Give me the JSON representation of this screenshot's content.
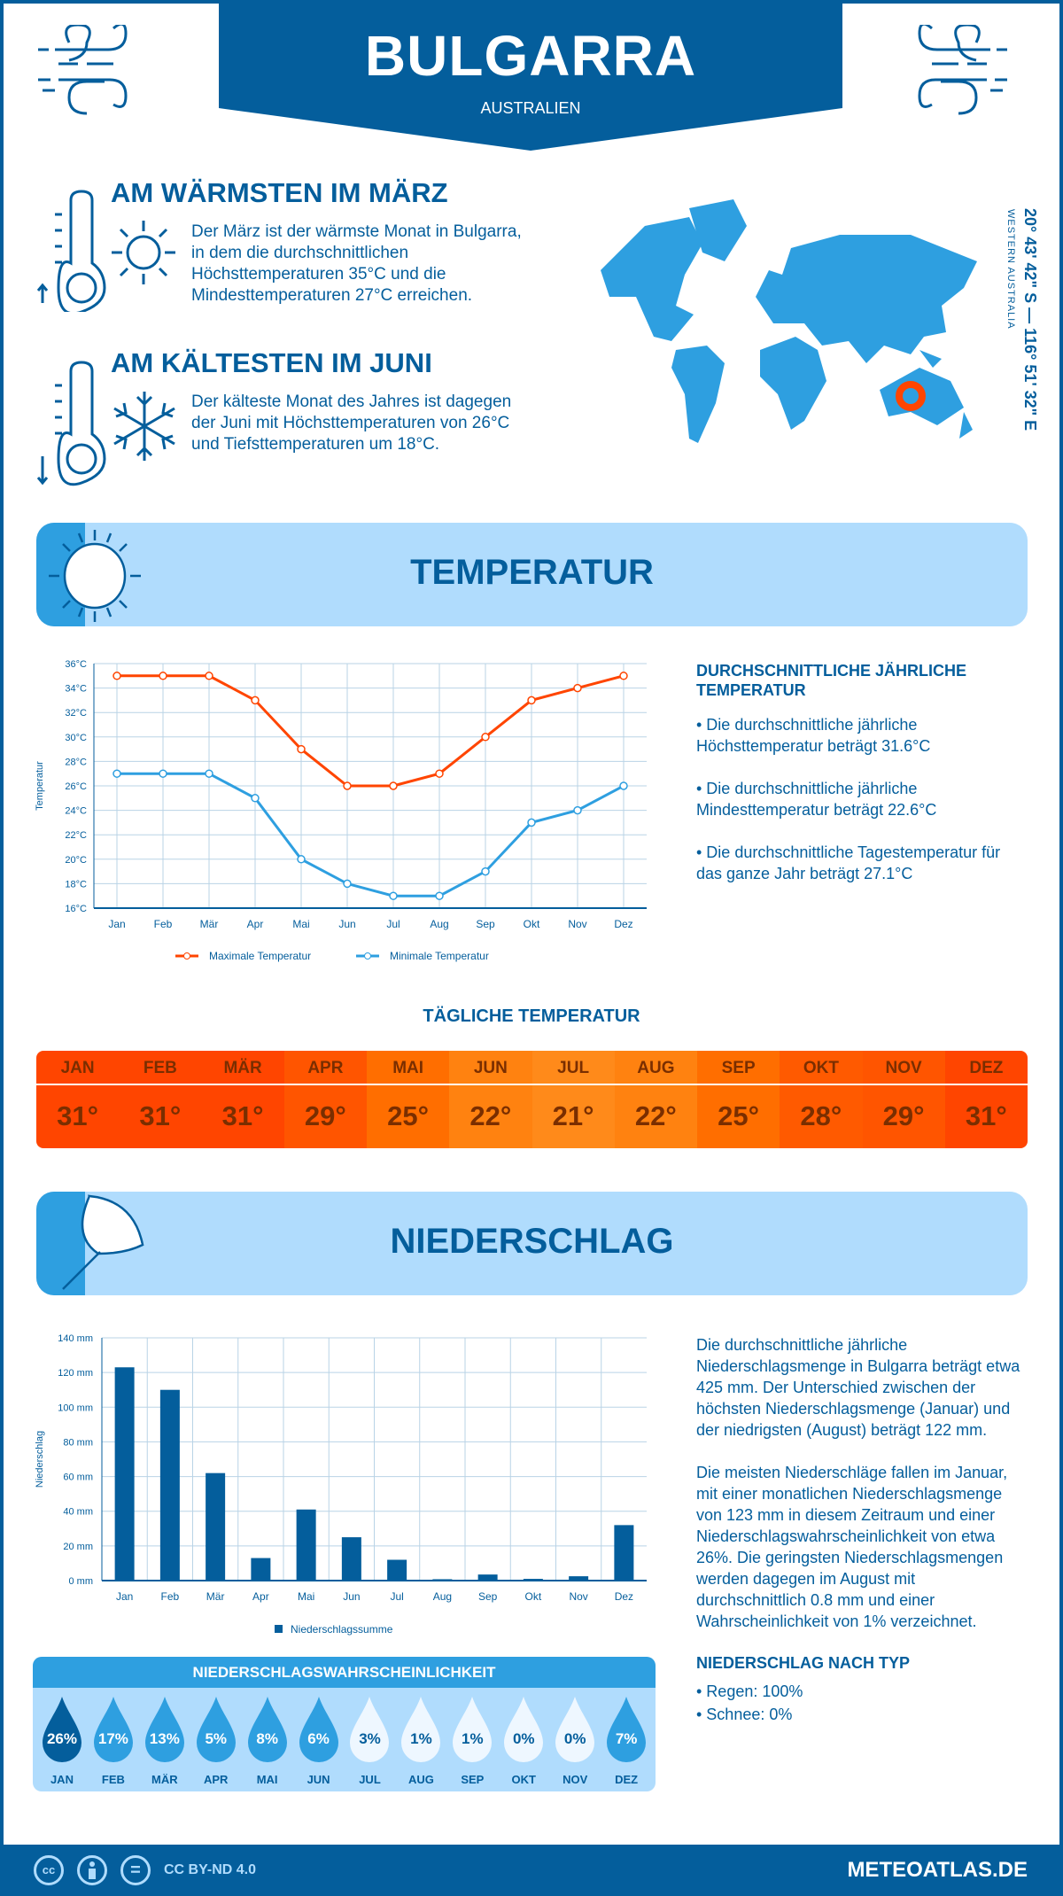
{
  "header": {
    "title": "BULGARRA",
    "country": "AUSTRALIEN"
  },
  "warm": {
    "title": "AM WÄRMSTEN IM MÄRZ",
    "lines": [
      "Der März ist der wärmste Monat in Bulgarra,",
      "in dem die durchschnittlichen",
      "Höchsttemperaturen 35°C und die",
      "Mindesttemperaturen 27°C erreichen."
    ]
  },
  "cold": {
    "title": "AM KÄLTESTEN IM JUNI",
    "lines": [
      "Der kälteste Monat des Jahres ist dagegen",
      "der Juni mit Höchsttemperaturen von 26°C",
      "und Tiefsttemperaturen um 18°C."
    ]
  },
  "map": {
    "coords": "20° 43' 42\" S — 116° 51' 32\" E",
    "region": "WESTERN AUSTRALIA"
  },
  "temperature": {
    "banner": "TEMPERATUR",
    "annual_title": "DURCHSCHNITTLICHE JÄHRLICHE TEMPERATUR",
    "annual": [
      "• Die durchschnittliche jährliche Höchsttemperatur beträgt 31.6°C",
      "• Die durchschnittliche jährliche Mindesttemperatur beträgt 22.6°C",
      "• Die durchschnittliche Tagestemperatur für das ganze Jahr beträgt 27.1°C"
    ],
    "daily_title": "TÄGLICHE TEMPERATUR",
    "daily": [
      {
        "m": "JAN",
        "v": "31°",
        "c": "#ff4500"
      },
      {
        "m": "FEB",
        "v": "31°",
        "c": "#ff4500"
      },
      {
        "m": "MÄR",
        "v": "31°",
        "c": "#ff4500"
      },
      {
        "m": "APR",
        "v": "29°",
        "c": "#ff5500"
      },
      {
        "m": "MAI",
        "v": "25°",
        "c": "#ff6e00"
      },
      {
        "m": "JUN",
        "v": "22°",
        "c": "#ff8210"
      },
      {
        "m": "JUL",
        "v": "21°",
        "c": "#ff8a1a"
      },
      {
        "m": "AUG",
        "v": "22°",
        "c": "#ff8210"
      },
      {
        "m": "SEP",
        "v": "25°",
        "c": "#ff6e00"
      },
      {
        "m": "OKT",
        "v": "28°",
        "c": "#ff5a00"
      },
      {
        "m": "NOV",
        "v": "29°",
        "c": "#ff5500"
      },
      {
        "m": "DEZ",
        "v": "31°",
        "c": "#ff4500"
      }
    ]
  },
  "precipitation": {
    "banner": "NIEDERSCHLAG",
    "text1": "Die durchschnittliche jährliche Niederschlagsmenge in Bulgarra beträgt etwa 425 mm. Der Unterschied zwischen der höchsten Niederschlagsmenge (Januar) und der niedrigsten (August) beträgt 122 mm.",
    "text2": "Die meisten Niederschläge fallen im Januar, mit einer monatlichen Niederschlagsmenge von 123 mm in diesem Zeitraum und einer Niederschlagswahrscheinlichkeit von etwa 26%. Die geringsten Niederschlagsmengen werden dagegen im August mit durchschnittlich 0.8 mm und einer Wahrscheinlichkeit von 1% verzeichnet.",
    "type_title": "NIEDERSCHLAG NACH TYP",
    "types": [
      "• Regen: 100%",
      "• Schnee: 0%"
    ],
    "prob_title": "NIEDERSCHLAGSWAHRSCHEINLICHKEIT",
    "prob": [
      {
        "m": "JAN",
        "v": "26%",
        "c": "#045e9c",
        "t": "#fff"
      },
      {
        "m": "FEB",
        "v": "17%",
        "c": "#2e9fe0",
        "t": "#fff"
      },
      {
        "m": "MÄR",
        "v": "13%",
        "c": "#2e9fe0",
        "t": "#fff"
      },
      {
        "m": "APR",
        "v": "5%",
        "c": "#2e9fe0",
        "t": "#fff"
      },
      {
        "m": "MAI",
        "v": "8%",
        "c": "#2e9fe0",
        "t": "#fff"
      },
      {
        "m": "JUN",
        "v": "6%",
        "c": "#2e9fe0",
        "t": "#fff"
      },
      {
        "m": "JUL",
        "v": "3%",
        "c": "#eef7ff",
        "t": "#045e9c"
      },
      {
        "m": "AUG",
        "v": "1%",
        "c": "#eef7ff",
        "t": "#045e9c"
      },
      {
        "m": "SEP",
        "v": "1%",
        "c": "#eef7ff",
        "t": "#045e9c"
      },
      {
        "m": "OKT",
        "v": "0%",
        "c": "#eef7ff",
        "t": "#045e9c"
      },
      {
        "m": "NOV",
        "v": "0%",
        "c": "#eef7ff",
        "t": "#045e9c"
      },
      {
        "m": "DEZ",
        "v": "7%",
        "c": "#2e9fe0",
        "t": "#fff"
      }
    ]
  },
  "footer": {
    "license": "CC BY-ND 4.0",
    "site": "METEOATLAS.DE",
    "cc": "cc",
    "eq": "="
  },
  "chart_data": [
    {
      "type": "line",
      "ylabel": "Temperatur",
      "ylim": [
        16,
        36
      ],
      "yticks": [
        "16°C",
        "18°C",
        "20°C",
        "22°C",
        "24°C",
        "26°C",
        "28°C",
        "30°C",
        "32°C",
        "34°C",
        "36°C"
      ],
      "categories": [
        "Jan",
        "Feb",
        "Mär",
        "Apr",
        "Mai",
        "Jun",
        "Jul",
        "Aug",
        "Sep",
        "Okt",
        "Nov",
        "Dez"
      ],
      "series": [
        {
          "name": "Maximale Temperatur",
          "color": "#ff4500",
          "values": [
            35,
            35,
            35,
            33,
            29,
            26,
            26,
            27,
            30,
            33,
            34,
            35
          ]
        },
        {
          "name": "Minimale Temperatur",
          "color": "#2e9fe0",
          "values": [
            27,
            27,
            27,
            25,
            20,
            18,
            17,
            17,
            19,
            23,
            24,
            26
          ]
        }
      ],
      "legend": "bottom"
    },
    {
      "type": "bar",
      "ylabel": "Niederschlag",
      "ylim": [
        0,
        140
      ],
      "yticks": [
        "0 mm",
        "20 mm",
        "40 mm",
        "60 mm",
        "80 mm",
        "100 mm",
        "120 mm",
        "140 mm"
      ],
      "categories": [
        "Jan",
        "Feb",
        "Mär",
        "Apr",
        "Mai",
        "Jun",
        "Jul",
        "Aug",
        "Sep",
        "Okt",
        "Nov",
        "Dez"
      ],
      "series": [
        {
          "name": "Niederschlagssumme",
          "color": "#045e9c",
          "values": [
            123,
            110,
            62,
            13,
            41,
            25,
            12,
            0.8,
            3.5,
            1,
            2.5,
            32
          ]
        }
      ],
      "legend": "bottom"
    }
  ]
}
